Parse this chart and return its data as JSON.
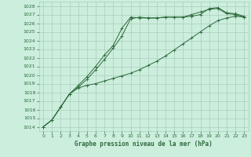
{
  "title": "Graphe pression niveau de la mer (hPa)",
  "bg_color": "#cceedd",
  "grid_color": "#aaccbb",
  "line_color": "#2d6b3c",
  "xlim": [
    -0.5,
    23.5
  ],
  "ylim": [
    1013.5,
    1028.5
  ],
  "yticks": [
    1014,
    1015,
    1016,
    1017,
    1018,
    1019,
    1020,
    1021,
    1022,
    1023,
    1024,
    1025,
    1026,
    1027,
    1028
  ],
  "xticks": [
    0,
    1,
    2,
    3,
    4,
    5,
    6,
    7,
    8,
    9,
    10,
    11,
    12,
    13,
    14,
    15,
    16,
    17,
    18,
    19,
    20,
    21,
    22,
    23
  ],
  "line1_x": [
    0,
    1,
    2,
    3,
    4,
    5,
    6,
    7,
    8,
    9,
    10,
    11,
    12,
    13,
    14,
    15,
    16,
    17,
    18,
    19,
    20,
    21,
    22,
    23
  ],
  "line1_y": [
    1014.0,
    1014.8,
    1016.3,
    1017.8,
    1018.6,
    1019.5,
    1020.6,
    1021.8,
    1023.1,
    1024.5,
    1026.5,
    1026.7,
    1026.6,
    1026.6,
    1026.7,
    1026.7,
    1026.7,
    1027.0,
    1027.3,
    1027.6,
    1027.7,
    1027.1,
    1027.0,
    1026.7
  ],
  "line2_x": [
    0,
    1,
    2,
    3,
    4,
    5,
    6,
    7,
    8,
    9,
    10,
    11,
    12,
    13,
    14,
    15,
    16,
    17,
    18,
    19,
    20,
    21,
    22,
    23
  ],
  "line2_y": [
    1014.0,
    1014.8,
    1016.3,
    1017.8,
    1018.8,
    1019.8,
    1021.0,
    1022.3,
    1023.4,
    1025.4,
    1026.7,
    1026.6,
    1026.6,
    1026.6,
    1026.7,
    1026.7,
    1026.7,
    1026.8,
    1027.0,
    1027.7,
    1027.8,
    1027.2,
    1027.1,
    1026.8
  ],
  "line3_x": [
    0,
    1,
    2,
    3,
    4,
    5,
    6,
    7,
    8,
    9,
    10,
    11,
    12,
    13,
    14,
    15,
    16,
    17,
    18,
    19,
    20,
    21,
    22,
    23
  ],
  "line3_y": [
    1014.0,
    1014.8,
    1016.3,
    1017.8,
    1018.5,
    1018.8,
    1019.0,
    1019.3,
    1019.6,
    1019.9,
    1020.2,
    1020.6,
    1021.1,
    1021.6,
    1022.2,
    1022.9,
    1023.6,
    1024.3,
    1025.0,
    1025.7,
    1026.3,
    1026.6,
    1026.8,
    1026.7
  ]
}
